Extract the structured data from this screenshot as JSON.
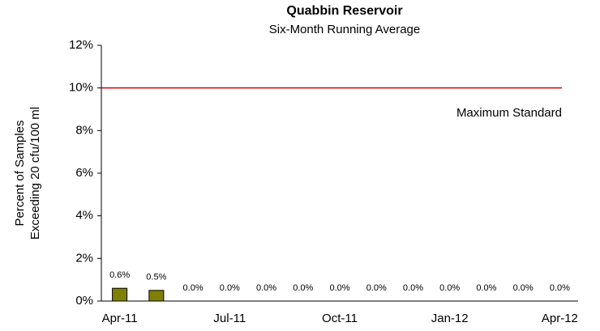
{
  "chart_data": {
    "type": "bar",
    "title": "Quabbin Reservoir",
    "subtitle": "Six-Month Running Average",
    "ylabel": [
      "Percent of Samples",
      "Exceeding 20 cfu/100 ml"
    ],
    "categories": [
      "Apr-11",
      null,
      null,
      "Jul-11",
      null,
      null,
      "Oct-11",
      null,
      null,
      "Jan-12",
      null,
      null,
      "Apr-12"
    ],
    "values": [
      0.6,
      0.5,
      0,
      0,
      0,
      0,
      0,
      0,
      0,
      0,
      0,
      0,
      0
    ],
    "value_labels": [
      "0.6%",
      "0.5%",
      "0.0%",
      "0.0%",
      "0.0%",
      "0.0%",
      "0.0%",
      "0.0%",
      "0.0%",
      "0.0%",
      "0.0%",
      "0.0%",
      "0.0%"
    ],
    "color": "#808000",
    "ylim": [
      0,
      12
    ],
    "yticks": [
      {
        "value": 0,
        "label": "0%"
      },
      {
        "value": 2,
        "label": "2%"
      },
      {
        "value": 4,
        "label": "4%"
      },
      {
        "value": 6,
        "label": "6%"
      },
      {
        "value": 8,
        "label": "8%"
      },
      {
        "value": 10,
        "label": "10%"
      },
      {
        "value": 12,
        "label": "12%"
      }
    ],
    "reference_line": {
      "value": 10,
      "label": "Maximum Standard",
      "color": "#e00000"
    }
  }
}
